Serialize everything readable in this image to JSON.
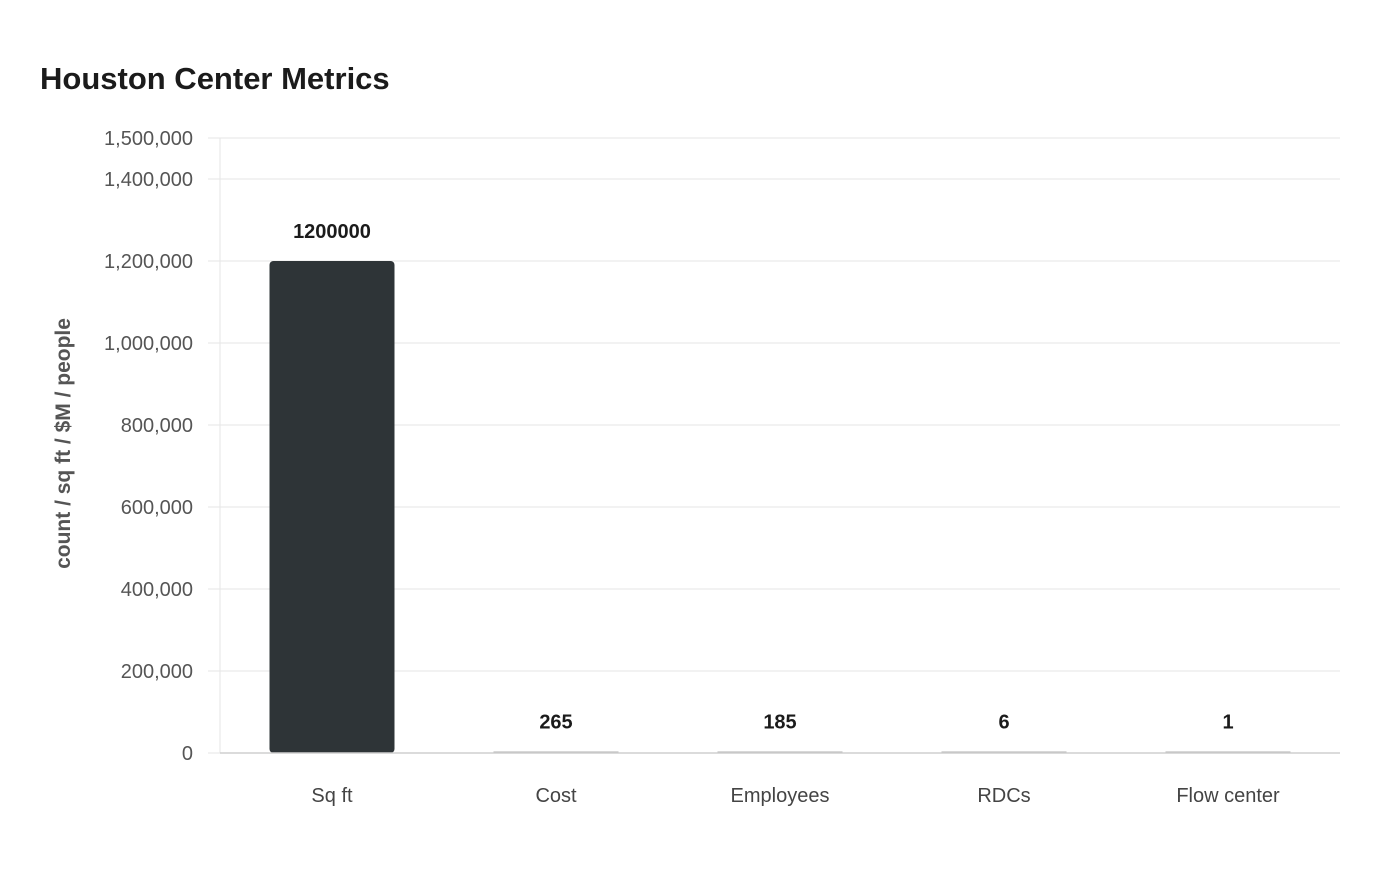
{
  "chart_data": {
    "type": "bar",
    "title": "Houston Center Metrics",
    "xlabel": "",
    "ylabel": "count / sq ft / $M / people",
    "categories": [
      "Sq ft",
      "Cost",
      "Employees",
      "RDCs",
      "Flow center"
    ],
    "values": [
      1200000,
      265,
      185,
      6,
      1
    ],
    "data_labels": [
      "1200000",
      "265",
      "185",
      "6",
      "1"
    ],
    "ylim": [
      0,
      1500000
    ],
    "y_ticks": [
      0,
      200000,
      400000,
      600000,
      800000,
      1000000,
      1200000,
      1400000,
      1500000
    ],
    "y_tick_labels": [
      "0",
      "200,000",
      "400,000",
      "600,000",
      "800,000",
      "1,000,000",
      "1,200,000",
      "1,400,000",
      "1,500,000"
    ],
    "grid": true,
    "legend": "none",
    "colors": {
      "primary_bar": "#2e3437",
      "secondary_bar": "#b0b0b0"
    }
  }
}
